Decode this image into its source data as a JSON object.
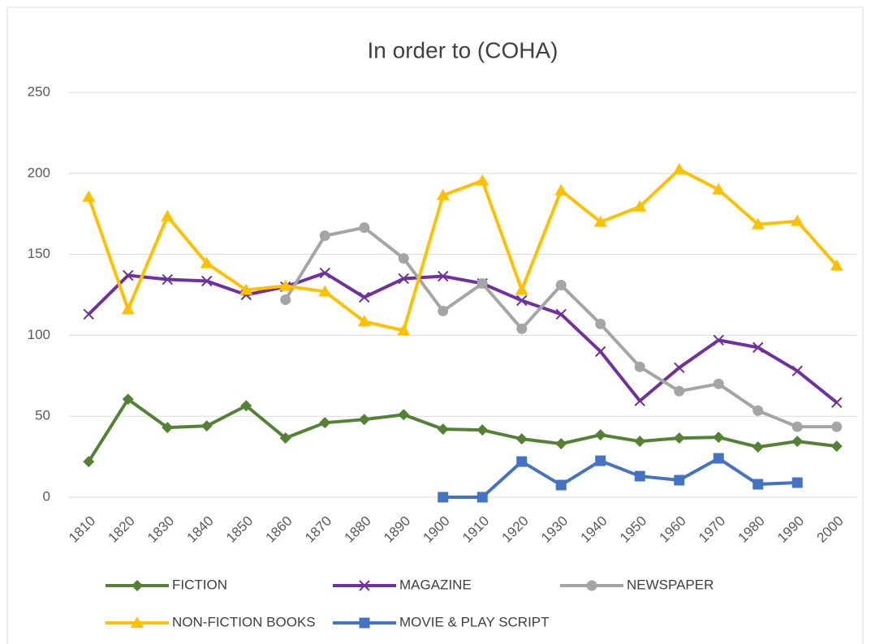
{
  "chart_data": {
    "type": "line",
    "title": "In order to (COHA)",
    "categories": [
      "1810",
      "1820",
      "1830",
      "1840",
      "1850",
      "1860",
      "1870",
      "1880",
      "1890",
      "1900",
      "1910",
      "1920",
      "1930",
      "1940",
      "1950",
      "1960",
      "1970",
      "1980",
      "1990",
      "2000"
    ],
    "ylim": [
      0,
      250
    ],
    "yticks": [
      0,
      50,
      100,
      150,
      200,
      250
    ],
    "grid": true,
    "legend": "bottom",
    "series": [
      {
        "name": "FICTION",
        "color": "#548235",
        "marker": "diamond",
        "values": [
          22,
          60.5,
          43,
          44,
          56.5,
          36.5,
          46,
          48,
          51,
          42,
          41.5,
          36,
          33,
          38.5,
          34.5,
          36.5,
          37,
          31,
          34.5,
          31.5
        ]
      },
      {
        "name": "MAGAZINE",
        "color": "#7030a0",
        "marker": "x",
        "values": [
          113,
          137,
          134.5,
          133.5,
          125,
          130,
          138.5,
          123.5,
          135,
          136.5,
          132,
          121.5,
          113,
          90,
          59.5,
          80,
          97,
          92.5,
          78,
          58.5
        ]
      },
      {
        "name": "NEWSPAPER",
        "color": "#a5a5a5",
        "marker": "circle",
        "values": [
          null,
          null,
          null,
          null,
          null,
          122,
          161.5,
          166.5,
          147.5,
          115,
          132,
          104,
          131,
          107,
          80.5,
          65.5,
          70,
          53.5,
          43.5,
          43.5
        ]
      },
      {
        "name": "NON-FICTION BOOKS",
        "color": "#ffc000",
        "marker": "triangle",
        "values": [
          185.5,
          116,
          173.5,
          144.5,
          128,
          130.5,
          127,
          108.5,
          103,
          186.5,
          195.5,
          128,
          189.5,
          170,
          179.5,
          202.5,
          190,
          168.5,
          170.5,
          143
        ]
      },
      {
        "name": "MOVIE & PLAY SCRIPT",
        "color": "#4472c4",
        "marker": "square",
        "values": [
          null,
          null,
          null,
          null,
          null,
          null,
          null,
          null,
          null,
          0,
          0,
          22,
          7.5,
          22.5,
          13,
          10.5,
          24,
          8,
          9,
          null
        ]
      }
    ]
  }
}
